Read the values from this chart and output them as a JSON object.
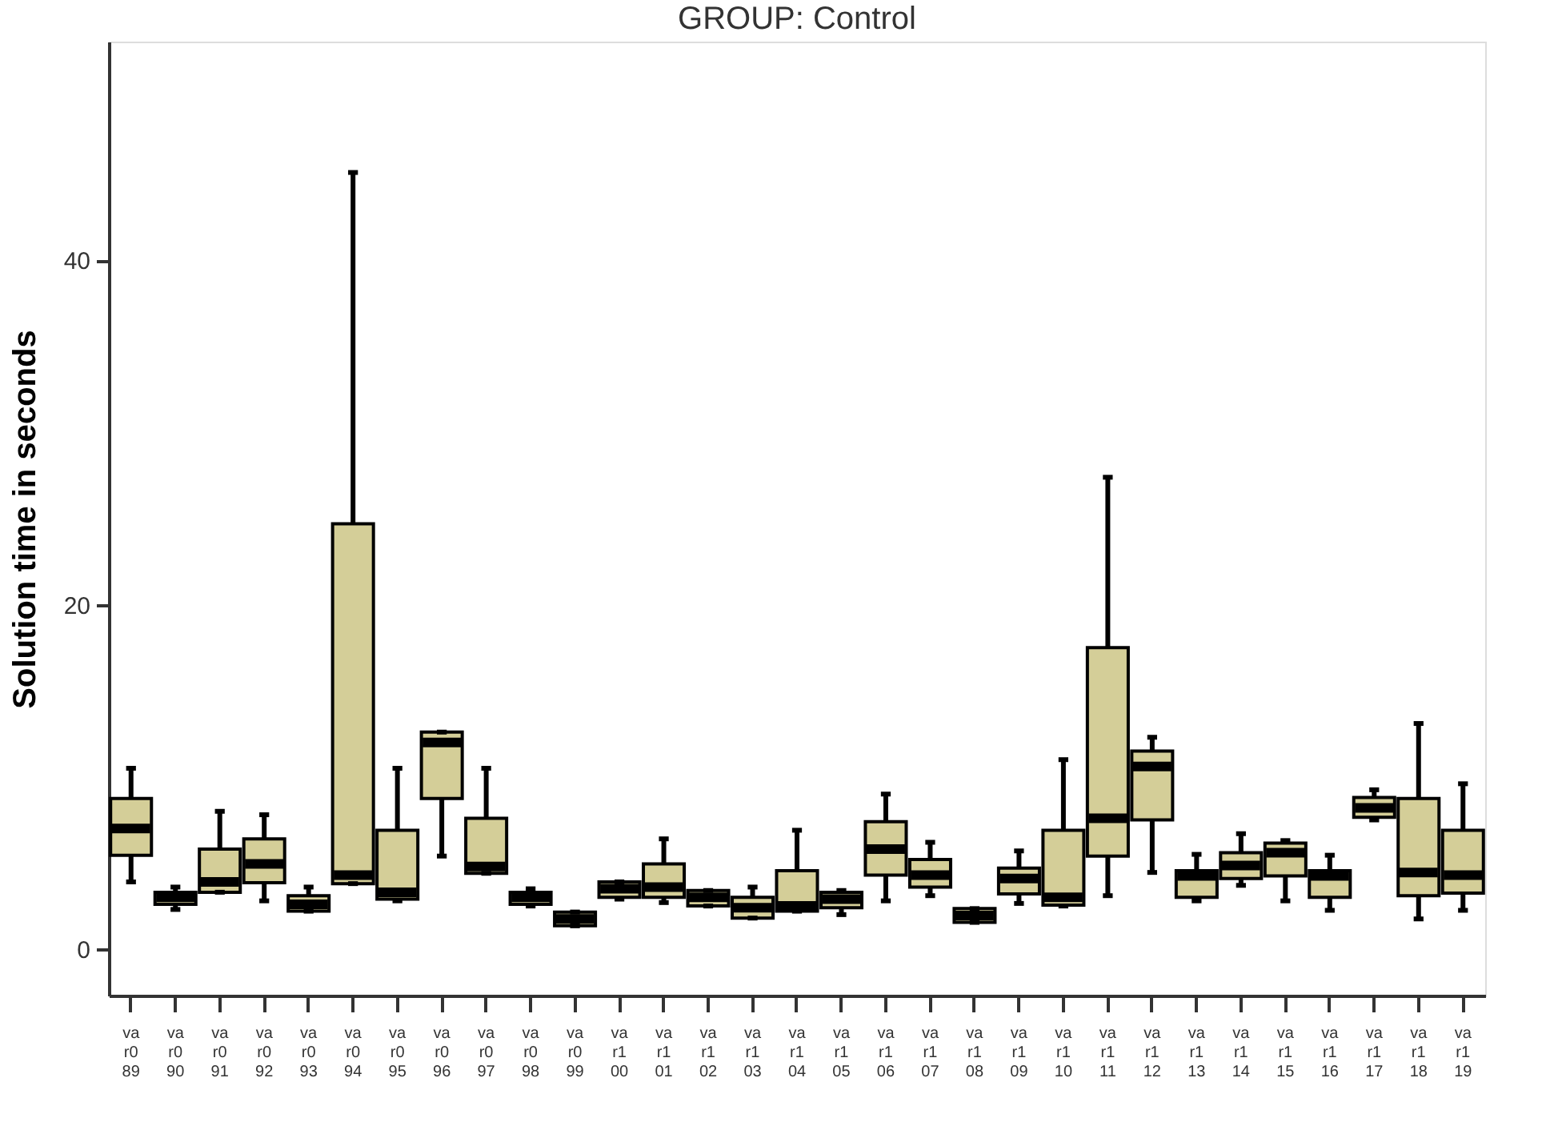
{
  "chart_data": {
    "type": "box",
    "title": "GROUP: Control",
    "ylabel": "Solution time in seconds",
    "categories": [
      "var089",
      "var090",
      "var091",
      "var092",
      "var093",
      "var094",
      "var095",
      "var096",
      "var097",
      "var098",
      "var099",
      "var100",
      "var101",
      "var102",
      "var103",
      "var104",
      "var105",
      "var106",
      "var107",
      "var108",
      "var109",
      "var110",
      "var111",
      "var112",
      "var113",
      "var114",
      "var115",
      "var116",
      "var117",
      "var118",
      "var119"
    ],
    "series": [
      {
        "color": "#d4ce98",
        "boxes": [
          {
            "low": 3.9,
            "q1": 5.45,
            "median": 7.0,
            "q3": 8.75,
            "high": 10.5
          },
          {
            "low": 2.3,
            "q1": 2.6,
            "median": 3.0,
            "q3": 3.3,
            "high": 3.6
          },
          {
            "low": 3.3,
            "q1": 3.3,
            "median": 3.9,
            "q3": 5.8,
            "high": 8.0
          },
          {
            "low": 2.8,
            "q1": 3.85,
            "median": 4.95,
            "q3": 6.4,
            "high": 7.8
          },
          {
            "low": 2.2,
            "q1": 2.2,
            "median": 2.6,
            "q3": 3.1,
            "high": 3.6
          },
          {
            "low": 3.8,
            "q1": 3.8,
            "median": 4.3,
            "q3": 24.7,
            "high": 45.1
          },
          {
            "low": 2.8,
            "q1": 2.9,
            "median": 3.3,
            "q3": 6.9,
            "high": 10.5
          },
          {
            "low": 5.4,
            "q1": 8.75,
            "median": 12.0,
            "q3": 12.6,
            "high": 12.6
          },
          {
            "low": 4.4,
            "q1": 4.4,
            "median": 4.8,
            "q3": 7.6,
            "high": 10.5
          },
          {
            "low": 2.5,
            "q1": 2.6,
            "median": 3.0,
            "q3": 3.3,
            "high": 3.5
          },
          {
            "low": 1.35,
            "q1": 1.35,
            "median": 1.75,
            "q3": 2.15,
            "high": 2.15
          },
          {
            "low": 2.9,
            "q1": 3.0,
            "median": 3.5,
            "q3": 3.9,
            "high": 3.9
          },
          {
            "low": 2.7,
            "q1": 3.0,
            "median": 3.6,
            "q3": 4.95,
            "high": 6.4
          },
          {
            "low": 2.5,
            "q1": 2.5,
            "median": 3.0,
            "q3": 3.4,
            "high": 3.4
          },
          {
            "low": 1.8,
            "q1": 1.8,
            "median": 2.4,
            "q3": 3.0,
            "high": 3.6
          },
          {
            "low": 2.2,
            "q1": 2.2,
            "median": 2.5,
            "q3": 4.55,
            "high": 6.9
          },
          {
            "low": 2.0,
            "q1": 2.4,
            "median": 2.9,
            "q3": 3.3,
            "high": 3.4
          },
          {
            "low": 2.8,
            "q1": 4.3,
            "median": 5.8,
            "q3": 7.4,
            "high": 9.0
          },
          {
            "low": 3.1,
            "q1": 3.6,
            "median": 4.3,
            "q3": 5.2,
            "high": 6.2
          },
          {
            "low": 1.55,
            "q1": 1.55,
            "median": 1.95,
            "q3": 2.35,
            "high": 2.35
          },
          {
            "low": 2.65,
            "q1": 3.2,
            "median": 4.1,
            "q3": 4.7,
            "high": 5.7
          },
          {
            "low": 2.5,
            "q1": 2.55,
            "median": 3.0,
            "q3": 6.9,
            "high": 11.0
          },
          {
            "low": 3.1,
            "q1": 5.4,
            "median": 7.6,
            "q3": 17.5,
            "high": 27.4
          },
          {
            "low": 4.45,
            "q1": 7.5,
            "median": 10.6,
            "q3": 11.5,
            "high": 12.3
          },
          {
            "low": 2.8,
            "q1": 3.0,
            "median": 4.25,
            "q3": 4.55,
            "high": 5.5
          },
          {
            "low": 3.7,
            "q1": 4.1,
            "median": 4.85,
            "q3": 5.6,
            "high": 6.7
          },
          {
            "low": 2.8,
            "q1": 4.25,
            "median": 5.6,
            "q3": 6.15,
            "high": 6.3
          },
          {
            "low": 2.25,
            "q1": 3.0,
            "median": 4.25,
            "q3": 4.55,
            "high": 5.45
          },
          {
            "low": 7.5,
            "q1": 7.65,
            "median": 8.2,
            "q3": 8.8,
            "high": 9.25
          },
          {
            "low": 1.75,
            "q1": 3.1,
            "median": 4.45,
            "q3": 8.75,
            "high": 13.1
          },
          {
            "low": 2.25,
            "q1": 3.25,
            "median": 4.3,
            "q3": 6.9,
            "high": 9.6
          }
        ]
      }
    ],
    "ylim": [
      -2.7,
      52.7
    ],
    "yticks": [
      0,
      20,
      40
    ],
    "grid": false,
    "legend": false
  }
}
